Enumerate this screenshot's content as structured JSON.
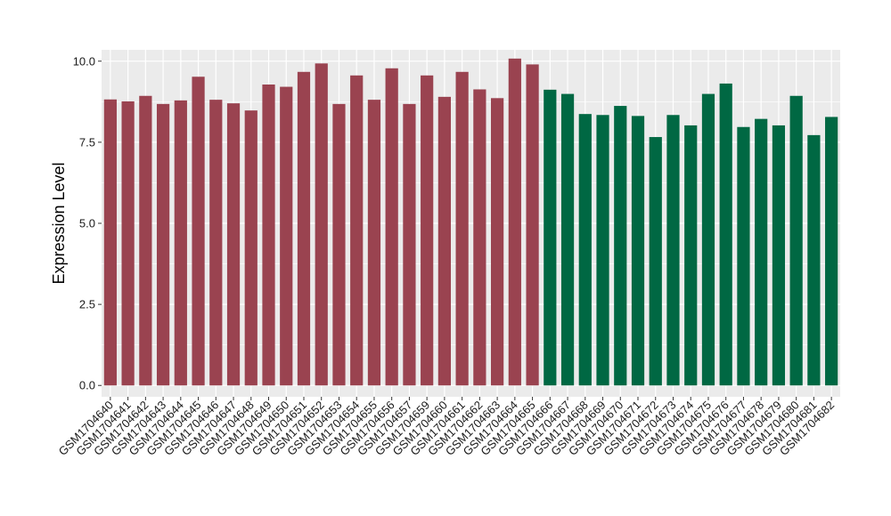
{
  "chart_data": {
    "type": "bar",
    "title": "",
    "xlabel": "",
    "ylabel": "Expression Level",
    "ylim": [
      -0.35,
      10.35
    ],
    "yticks": [
      0.0,
      2.5,
      5.0,
      7.5,
      10.0
    ],
    "ytick_labels": [
      "0.0",
      "2.5",
      "5.0",
      "7.5",
      "10.0"
    ],
    "grid": true,
    "panel_background": "#ebebeb",
    "grid_color": "#ffffff",
    "categories": [
      "GSM1704640",
      "GSM1704641",
      "GSM1704642",
      "GSM1704643",
      "GSM1704644",
      "GSM1704645",
      "GSM1704646",
      "GSM1704647",
      "GSM1704648",
      "GSM1704649",
      "GSM1704650",
      "GSM1704651",
      "GSM1704652",
      "GSM1704653",
      "GSM1704654",
      "GSM1704655",
      "GSM1704656",
      "GSM1704657",
      "GSM1704659",
      "GSM1704660",
      "GSM1704661",
      "GSM1704662",
      "GSM1704663",
      "GSM1704664",
      "GSM1704665",
      "GSM1704666",
      "GSM1704667",
      "GSM1704668",
      "GSM1704669",
      "GSM1704670",
      "GSM1704671",
      "GSM1704672",
      "GSM1704673",
      "GSM1704674",
      "GSM1704675",
      "GSM1704676",
      "GSM1704677",
      "GSM1704678",
      "GSM1704679",
      "GSM1704680",
      "GSM1704681",
      "GSM1704682"
    ],
    "values": [
      8.82,
      8.76,
      8.93,
      8.68,
      8.79,
      9.52,
      8.81,
      8.7,
      8.48,
      9.28,
      9.21,
      9.67,
      9.93,
      8.68,
      9.56,
      8.81,
      9.78,
      8.68,
      9.56,
      8.9,
      9.67,
      9.13,
      8.86,
      10.08,
      9.9,
      9.12,
      8.99,
      8.37,
      8.34,
      8.62,
      8.31,
      7.66,
      8.34,
      8.02,
      8.99,
      9.31,
      7.97,
      8.22,
      8.02,
      8.93,
      7.72,
      8.28
    ],
    "groups": [
      {
        "color": "#9a4350",
        "count": 25
      },
      {
        "color": "#006843",
        "count": 17
      }
    ]
  }
}
